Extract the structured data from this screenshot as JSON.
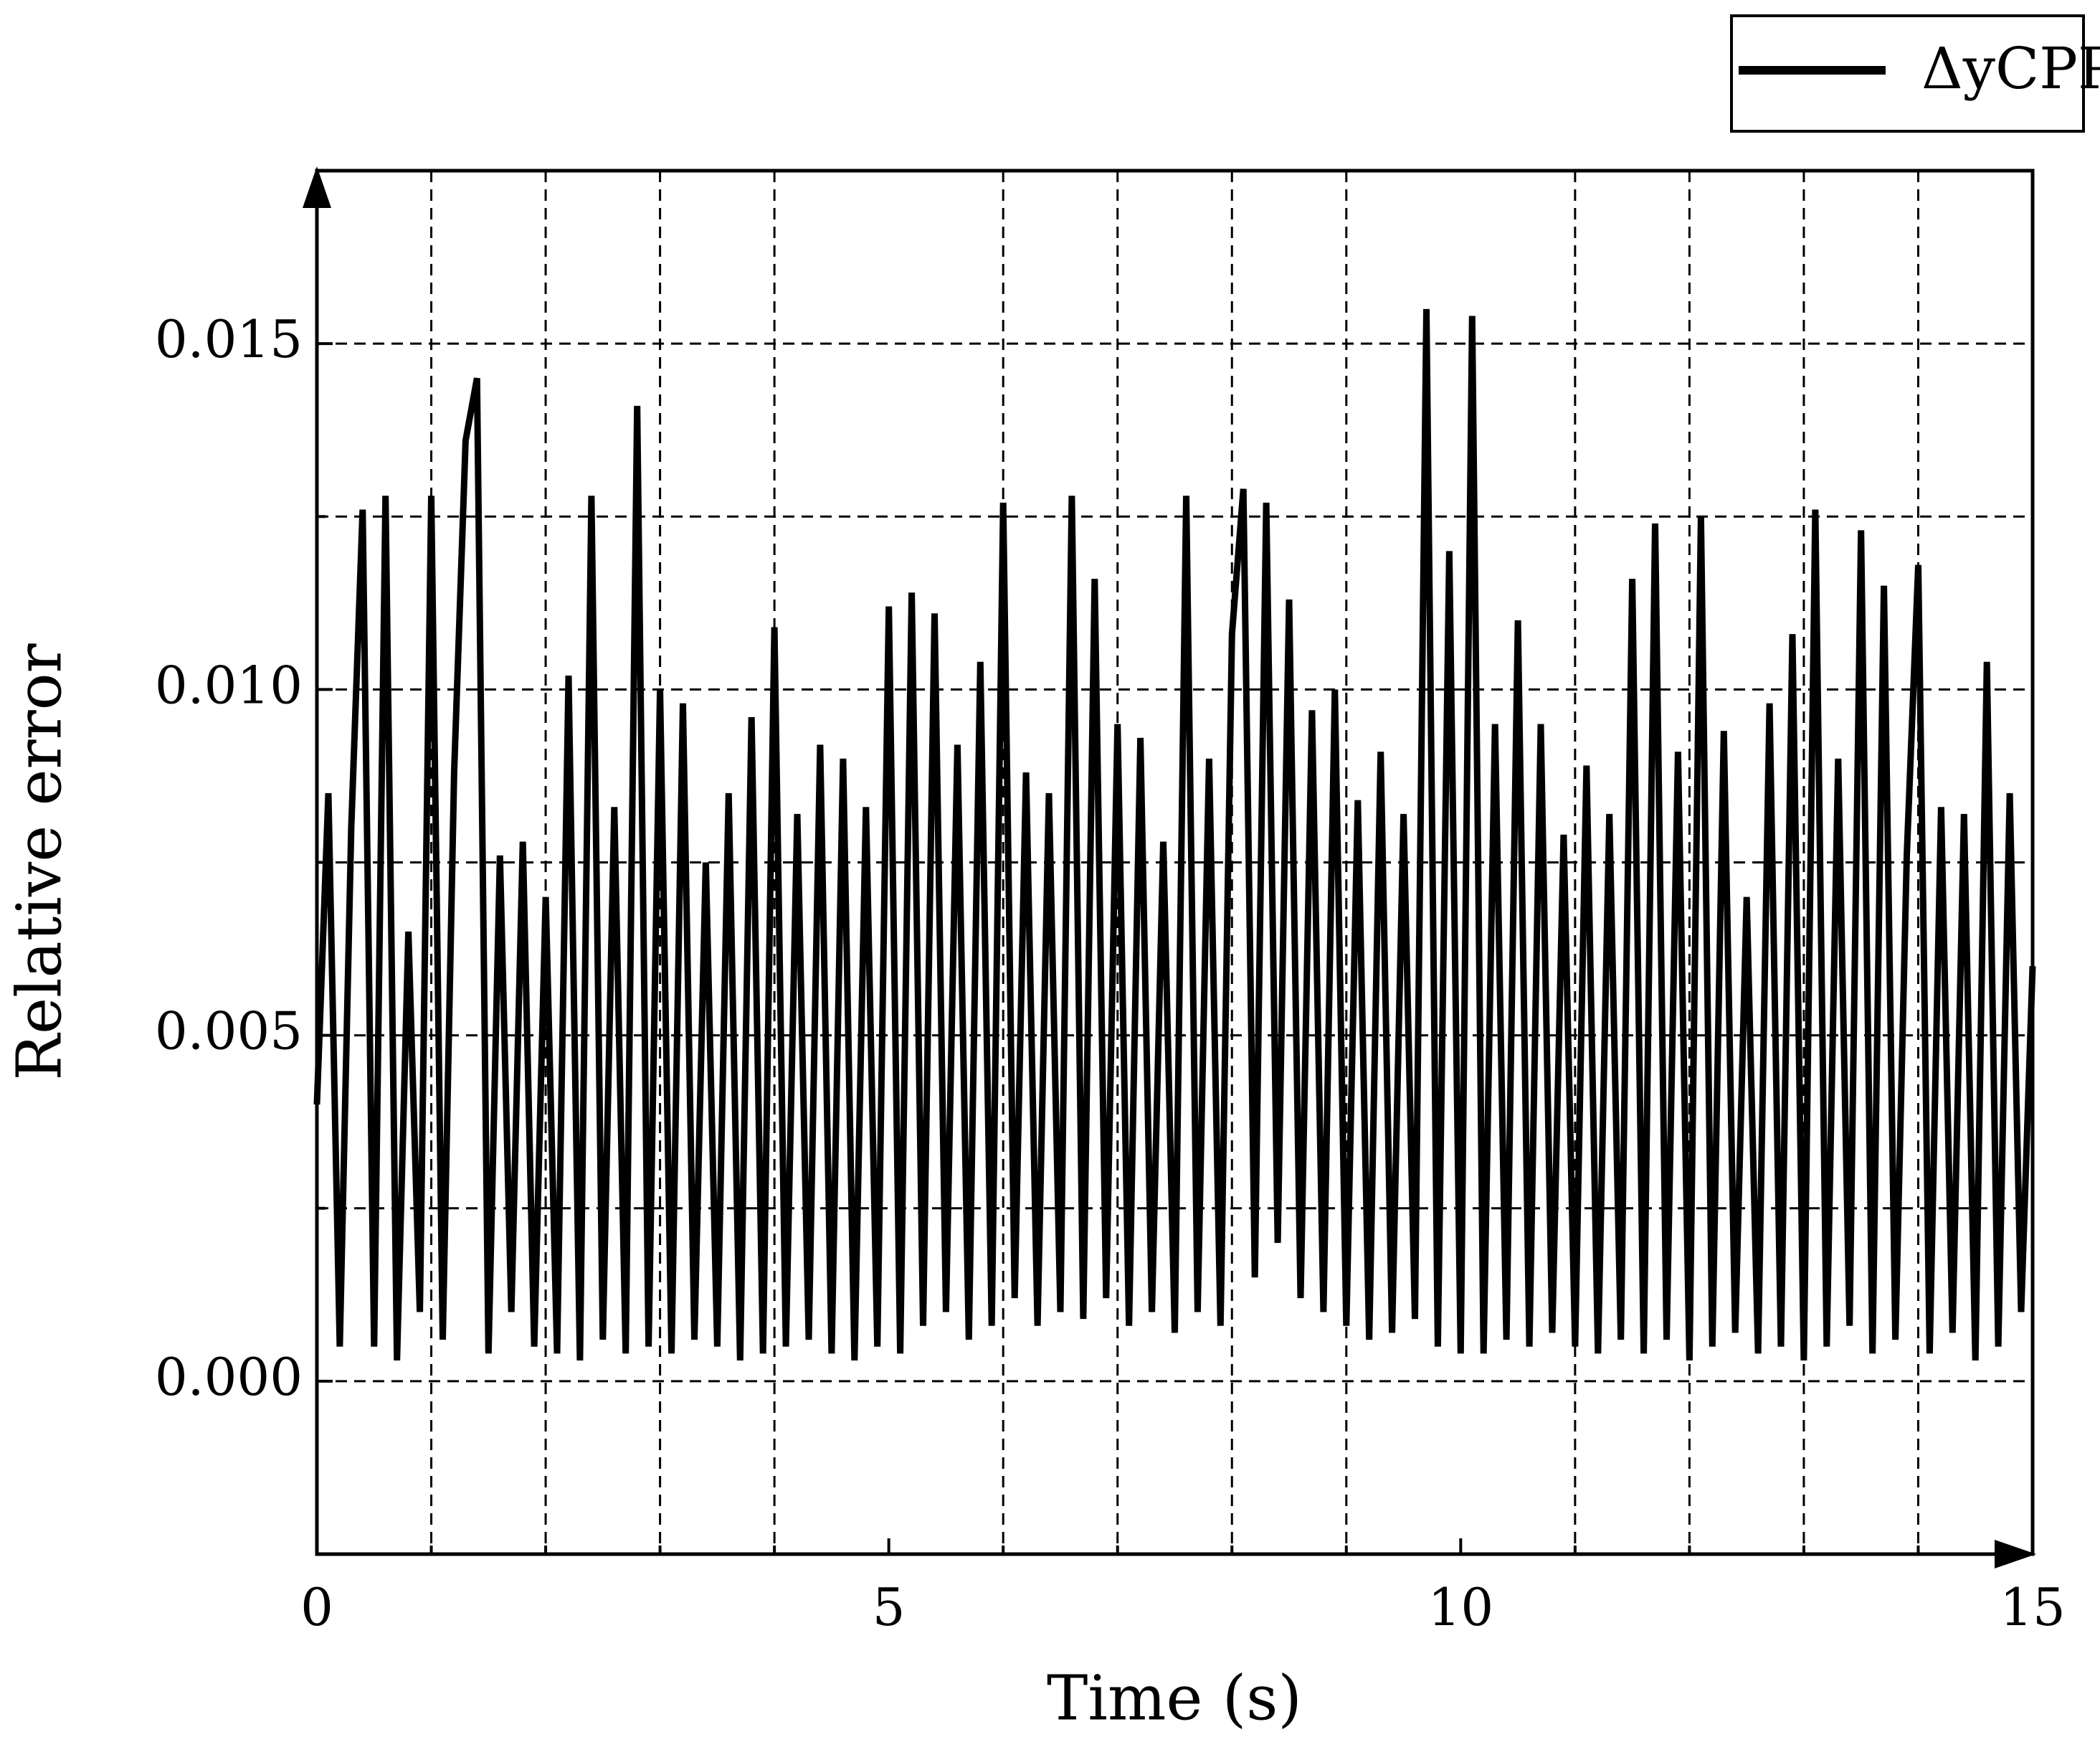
{
  "chart_data": {
    "type": "line",
    "xlabel": "Time (s)",
    "ylabel": "Relative error",
    "x": [
      0,
      0.1,
      0.2,
      0.3,
      0.4,
      0.5,
      0.6,
      0.7,
      0.8,
      0.9,
      1,
      1.1,
      1.2,
      1.3,
      1.4,
      1.5,
      1.6,
      1.7,
      1.8,
      1.9,
      2,
      2.1,
      2.2,
      2.3,
      2.4,
      2.5,
      2.6,
      2.7,
      2.8,
      2.9,
      3,
      3.1,
      3.2,
      3.3,
      3.4,
      3.5,
      3.6,
      3.7,
      3.8,
      3.9,
      4,
      4.1,
      4.2,
      4.3,
      4.4,
      4.5,
      4.6,
      4.7,
      4.8,
      4.9,
      5,
      5.1,
      5.2,
      5.3,
      5.4,
      5.5,
      5.6,
      5.7,
      5.8,
      5.9,
      6,
      6.1,
      6.2,
      6.3,
      6.4,
      6.5,
      6.6,
      6.7,
      6.8,
      6.9,
      7,
      7.1,
      7.2,
      7.3,
      7.4,
      7.5,
      7.6,
      7.7,
      7.8,
      7.9,
      8,
      8.1,
      8.2,
      8.3,
      8.4,
      8.5,
      8.6,
      8.7,
      8.8,
      8.9,
      9,
      9.1,
      9.2,
      9.3,
      9.4,
      9.5,
      9.6,
      9.7,
      9.8,
      9.9,
      10,
      10.1,
      10.2,
      10.3,
      10.4,
      10.5,
      10.6,
      10.7,
      10.8,
      10.9,
      11,
      11.1,
      11.2,
      11.3,
      11.4,
      11.5,
      11.6,
      11.7,
      11.8,
      11.9,
      12,
      12.1,
      12.2,
      12.3,
      12.4,
      12.5,
      12.6,
      12.7,
      12.8,
      12.9,
      13,
      13.1,
      13.2,
      13.3,
      13.4,
      13.5,
      13.6,
      13.7,
      13.8,
      13.9,
      14,
      14.1,
      14.2,
      14.3,
      14.4,
      14.5,
      14.6,
      14.7,
      14.8,
      14.9,
      15
    ],
    "series": [
      {
        "name": "ΔyCPP",
        "color": "#000000",
        "values": [
          0.004,
          0.0085,
          0.0005,
          0.008,
          0.0126,
          0.0005,
          0.0128,
          0.0003,
          0.0065,
          0.001,
          0.0128,
          0.0006,
          0.0088,
          0.0136,
          0.0145,
          0.0004,
          0.0076,
          0.001,
          0.0078,
          0.0005,
          0.007,
          0.0004,
          0.0102,
          0.0003,
          0.0128,
          0.0006,
          0.0083,
          0.0004,
          0.0141,
          0.0005,
          0.01,
          0.0004,
          0.0098,
          0.0006,
          0.0075,
          0.0005,
          0.0085,
          0.0003,
          0.0096,
          0.0004,
          0.0109,
          0.0005,
          0.0082,
          0.0006,
          0.0092,
          0.0004,
          0.009,
          0.0003,
          0.0083,
          0.0005,
          0.0112,
          0.0004,
          0.0114,
          0.0008,
          0.0111,
          0.001,
          0.0092,
          0.0006,
          0.0104,
          0.0008,
          0.0127,
          0.0012,
          0.0088,
          0.0008,
          0.0085,
          0.001,
          0.0128,
          0.0009,
          0.0116,
          0.0012,
          0.0095,
          0.0008,
          0.0093,
          0.001,
          0.0078,
          0.0007,
          0.0128,
          0.001,
          0.009,
          0.0008,
          0.0108,
          0.0129,
          0.0015,
          0.0127,
          0.002,
          0.0113,
          0.0012,
          0.0097,
          0.001,
          0.01,
          0.0008,
          0.0084,
          0.0006,
          0.0091,
          0.0007,
          0.0082,
          0.0009,
          0.0155,
          0.0005,
          0.012,
          0.0004,
          0.0154,
          0.0004,
          0.0095,
          0.0006,
          0.011,
          0.0005,
          0.0095,
          0.0007,
          0.0079,
          0.0005,
          0.0089,
          0.0004,
          0.0082,
          0.0006,
          0.0116,
          0.0004,
          0.0124,
          0.0006,
          0.0091,
          0.0003,
          0.0125,
          0.0005,
          0.0094,
          0.0007,
          0.007,
          0.0004,
          0.0098,
          0.0005,
          0.0108,
          0.0003,
          0.0126,
          0.0005,
          0.009,
          0.0008,
          0.0123,
          0.0004,
          0.0115,
          0.0006,
          0.0076,
          0.0118,
          0.0004,
          0.0083,
          0.0007,
          0.0082,
          0.0003,
          0.0104,
          0.0005,
          0.0085,
          0.001,
          0.006
        ]
      }
    ],
    "xlim": [
      0,
      15
    ],
    "xticks": [
      0,
      5,
      10,
      15
    ],
    "xminorticks": [
      1,
      2,
      3,
      4,
      6,
      7,
      8,
      9,
      11,
      12,
      13,
      14
    ],
    "ylim": [
      -0.0025,
      0.0175
    ],
    "yticks": [
      {
        "value": 0,
        "label": "0.000"
      },
      {
        "value": 0.005,
        "label": "0.005"
      },
      {
        "value": 0.01,
        "label": "0.010"
      },
      {
        "value": 0.015,
        "label": "0.015"
      }
    ],
    "yminorticks": [
      0.0025,
      0.0075,
      0.0125
    ],
    "grid": true,
    "legend": "upper right"
  }
}
